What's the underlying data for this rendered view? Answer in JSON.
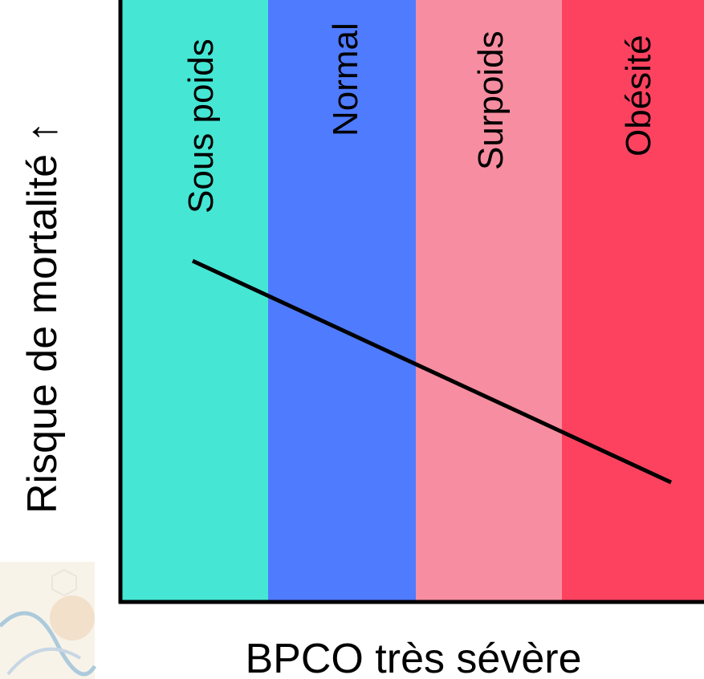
{
  "y_label": "Risque de mortalité ↑",
  "x_label": "BPCO très sévère",
  "bands": [
    {
      "label": "Sous poids"
    },
    {
      "label": "Normal"
    },
    {
      "label": "Surpoids"
    },
    {
      "label": "Obésité"
    }
  ]
}
